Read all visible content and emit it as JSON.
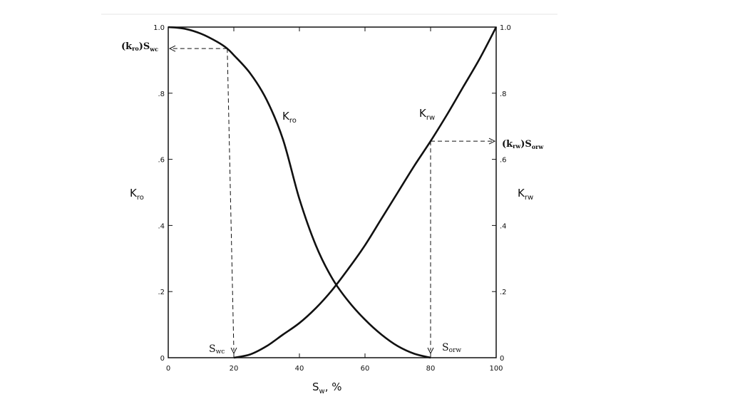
{
  "chart_data": {
    "type": "line",
    "xlabel": "S",
    "xlabel_sub": "w",
    "xlabel_unit": ", %",
    "ylabel_left": "K",
    "ylabel_left_sub": "ro",
    "ylabel_right": "K",
    "ylabel_right_sub": "rw",
    "xlim": [
      0,
      100
    ],
    "ylim": [
      0,
      1.0
    ],
    "x_ticks": [
      0,
      20,
      40,
      60,
      80,
      100
    ],
    "x_tick_labels": [
      "0",
      "20",
      "40",
      "60",
      "80",
      "100"
    ],
    "y_ticks": [
      0,
      0.2,
      0.4,
      0.6,
      0.8,
      1.0
    ],
    "y_tick_labels_left": [
      "0",
      ".2",
      ".4",
      ".6",
      ".8",
      "1.0"
    ],
    "y_tick_labels_right": [
      "0",
      ".2",
      ".4",
      ".6",
      ".8",
      "1.0"
    ],
    "grid": false,
    "series": [
      {
        "name": "Kro",
        "label_main": "K",
        "label_sub": "ro",
        "x": [
          0,
          5,
          10,
          15,
          18,
          20,
          25,
          30,
          35,
          40,
          45,
          50,
          55,
          60,
          65,
          70,
          75,
          80
        ],
        "y": [
          1.0,
          0.995,
          0.98,
          0.955,
          0.935,
          0.915,
          0.86,
          0.78,
          0.66,
          0.48,
          0.34,
          0.24,
          0.17,
          0.115,
          0.07,
          0.035,
          0.012,
          0.0
        ]
      },
      {
        "name": "Krw",
        "label_main": "K",
        "label_sub": "rw",
        "x": [
          20,
          25,
          30,
          35,
          40,
          45,
          50,
          55,
          60,
          65,
          70,
          75,
          80,
          85,
          90,
          95,
          100
        ],
        "y": [
          0.0,
          0.01,
          0.035,
          0.07,
          0.105,
          0.15,
          0.205,
          0.27,
          0.34,
          0.42,
          0.5,
          0.58,
          0.655,
          0.735,
          0.82,
          0.905,
          1.0
        ]
      }
    ],
    "annotations": [
      {
        "main": "(k",
        "sub": "ro",
        "tail": ")S",
        "tail_sub": "wc",
        "x": 18,
        "y": 0.935
      },
      {
        "main": "(k",
        "sub": "rw",
        "tail": ")S",
        "tail_sub": "orw",
        "x": 80,
        "y": 0.655
      },
      {
        "main": "S",
        "sub": "wc",
        "x": 20,
        "y": 0
      },
      {
        "main": "S",
        "sub": "orw",
        "x": 80,
        "y": 0
      }
    ]
  }
}
